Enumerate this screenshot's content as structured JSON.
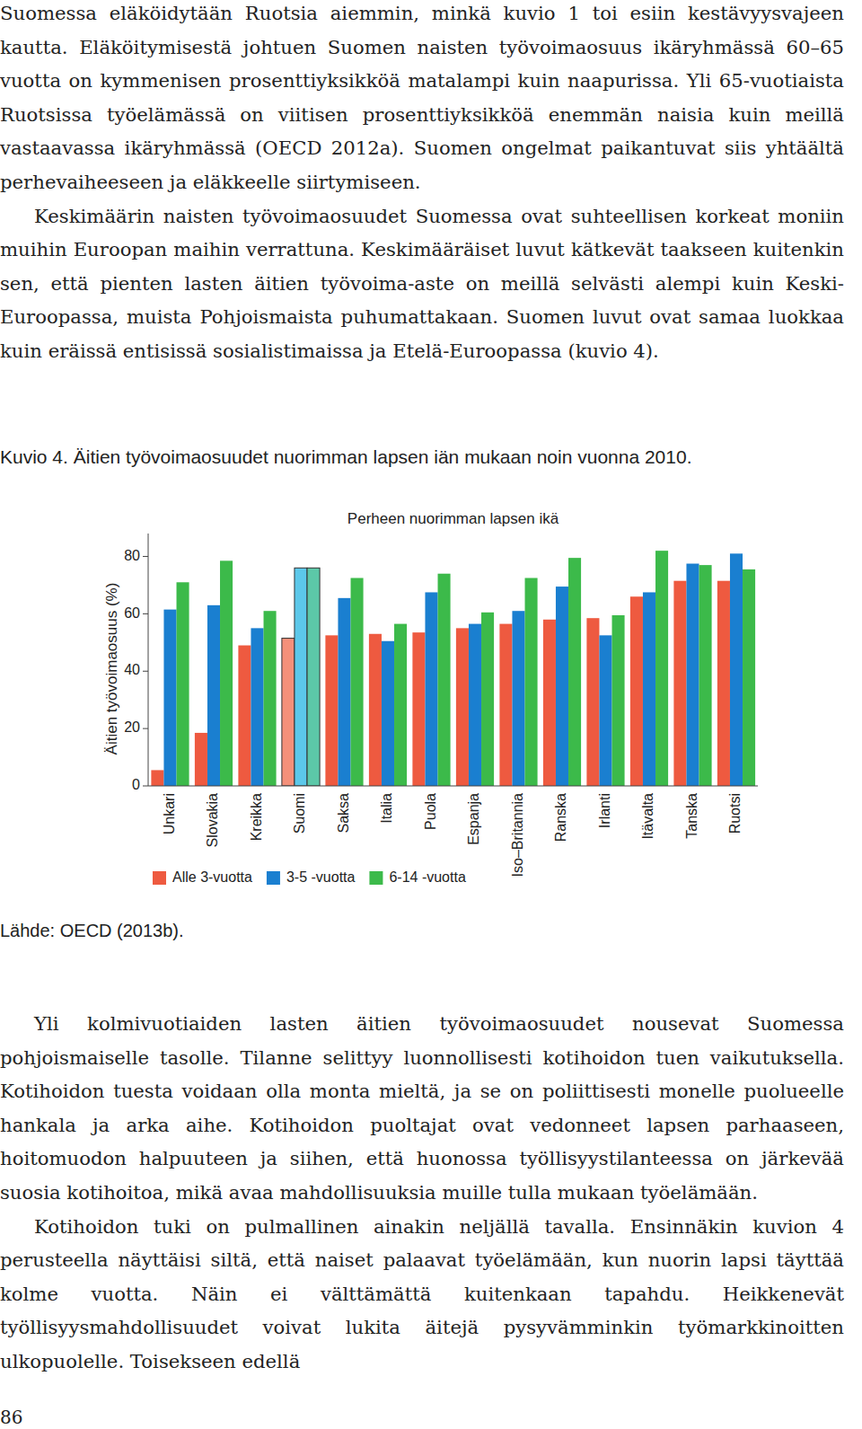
{
  "text_before": [
    "Suomessa eläköidytään Ruotsia aiemmin, minkä kuvio 1 toi esiin kestävyysvajeen kautta. Eläköitymisestä johtuen Suomen naisten työvoimaosuus ikäryhmässä 60–65 vuotta on kymmenisen prosenttiyksikköä matalampi kuin naapurissa. Yli 65-vuotiaista Ruotsissa työelämässä on viitisen prosenttiyksikköä enemmän naisia kuin meillä vastaavassa ikäryhmässä (OECD 2012a). Suomen ongelmat paikantuvat siis yhtäältä perhevaiheeseen ja eläkkeelle siirtymiseen.",
    "Keskimäärin naisten työvoimaosuudet Suomessa ovat suhteellisen korkeat moniin muihin Euroopan maihin verrattuna. Keskimääräiset luvut kätkevät taakseen kuitenkin sen, että pienten lasten äitien työvoima-aste on meillä selvästi alempi kuin Keski-Euroopassa, muista Pohjoismaista puhumattakaan. Suomen luvut ovat samaa luokkaa kuin eräissä entisissä sosialistimaissa ja Etelä-Euroopassa (kuvio 4)."
  ],
  "figure": {
    "title": "Kuvio 4. Äitien työvoimaosuudet nuorimman lapsen iän mukaan noin vuonna 2010.",
    "source": "Lähde: OECD (2013b)."
  },
  "chart_data": {
    "type": "bar",
    "title": "Perheen nuorimman lapsen ikä",
    "y_label": "Äitien työvoimaosuus (%)",
    "categories": [
      "Unkari",
      "Slovakia",
      "Kreikka",
      "Suomi",
      "Saksa",
      "Italia",
      "Puola",
      "Espanja",
      "Iso–Britannia",
      "Ranska",
      "Irlanti",
      "Itävalta",
      "Tanska",
      "Ruotsi"
    ],
    "series": [
      {
        "name": "Alle 3-vuotta",
        "color": "#ee5a40",
        "colors": [
          "#ee5a40",
          "#ee5a40",
          "#ee5a40",
          "#f4907a",
          "#ee5a40",
          "#ee5a40",
          "#ee5a40",
          "#ee5a40",
          "#ee5a40",
          "#ee5a40",
          "#ee5a40",
          "#ee5a40",
          "#ee5a40",
          "#ee5a40"
        ],
        "values": [
          5.5,
          18.5,
          49,
          51.5,
          52.5,
          53,
          53.5,
          55,
          56.5,
          58,
          58.5,
          66,
          71.5,
          71.5
        ]
      },
      {
        "name": "3-5 -vuotta",
        "color": "#1a7fd0",
        "colors": [
          "#1a7fd0",
          "#1a7fd0",
          "#1a7fd0",
          "#5cc8ea",
          "#1a7fd0",
          "#1a7fd0",
          "#1a7fd0",
          "#1a7fd0",
          "#1a7fd0",
          "#1a7fd0",
          "#1a7fd0",
          "#1a7fd0",
          "#1a7fd0",
          "#1a7fd0"
        ],
        "values": [
          61.5,
          63,
          55,
          76,
          65.5,
          50.5,
          67.5,
          56.5,
          61,
          69.5,
          52.5,
          67.5,
          77.5,
          81
        ]
      },
      {
        "name": "6-14 -vuotta",
        "color": "#3cba4a",
        "colors": [
          "#3cba4a",
          "#3cba4a",
          "#3cba4a",
          "#5cc8a8",
          "#3cba4a",
          "#3cba4a",
          "#3cba4a",
          "#3cba4a",
          "#3cba4a",
          "#3cba4a",
          "#3cba4a",
          "#3cba4a",
          "#3cba4a",
          "#3cba4a"
        ],
        "values": [
          71,
          78.5,
          61,
          76,
          72.5,
          56.5,
          74,
          60.5,
          72.5,
          79.5,
          59.5,
          82,
          77,
          75.5
        ]
      }
    ],
    "ylim": [
      0,
      88
    ],
    "yticks": [
      0,
      20,
      40,
      60,
      80
    ],
    "grid": false,
    "legend": "bottom"
  },
  "text_after": [
    "Yli kolmivuotiaiden lasten äitien työvoimaosuudet nousevat Suomessa pohjoismaiselle tasolle. Tilanne selittyy luonnollisesti kotihoidon tuen vaikutuksella. Kotihoidon tuesta voidaan olla monta mieltä, ja se on poliittisesti monelle puolueelle hankala ja arka aihe. Kotihoidon puoltajat ovat vedonneet lapsen parhaaseen, hoitomuodon halpuuteen ja siihen, että huonossa työllisyystilanteessa on järkevää suosia kotihoitoa, mikä avaa mahdollisuuksia muille tulla mukaan työelämään.",
    "Kotihoidon tuki on pulmallinen ainakin neljällä tavalla. Ensinnäkin kuvion 4 perusteella näyttäisi siltä, että naiset palaavat työelämään, kun nuorin lapsi täyttää kolme vuotta. Näin ei välttämättä kuitenkaan tapahdu. Heikkenevät työllisyysmahdollisuudet voivat lukita äitejä pysyvämminkin työmarkkinoitten ulkopuolelle. Toisekseen edellä"
  ],
  "page_number": "86"
}
